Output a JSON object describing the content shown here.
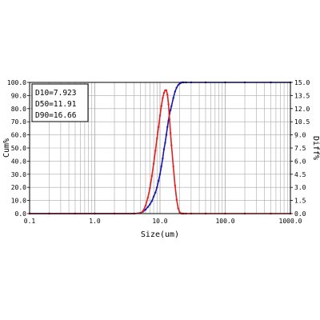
{
  "chart_data": {
    "type": "line",
    "xlabel": "Size(um)",
    "ylabel_left": "Cum%",
    "ylabel_right": "Diff%",
    "x_scale": "log",
    "xlim": [
      0.1,
      1000.0
    ],
    "ylim_left": [
      0.0,
      100.0
    ],
    "ylim_right": [
      0.0,
      15.0
    ],
    "grid": true,
    "x_tick_labels": [
      "0.1",
      "1.0",
      "10.0",
      "100.0",
      "1000.0"
    ],
    "x_tick_values": [
      0.1,
      1.0,
      10.0,
      100.0,
      1000.0
    ],
    "y_left_tick_labels": [
      "0.0",
      "10.0",
      "20.0",
      "30.0",
      "40.0",
      "50.0",
      "60.0",
      "70.0",
      "80.0",
      "90.0",
      "100.0"
    ],
    "y_right_tick_labels": [
      "0.0",
      "1.5",
      "3.0",
      "4.5",
      "6.0",
      "7.5",
      "9.0",
      "10.5",
      "12.0",
      "13.5",
      "15.0"
    ],
    "annotations": [
      "D10=7.923",
      "D50=11.91",
      "D90=16.66"
    ],
    "series": [
      {
        "axis": "left",
        "color": "#1a1aa8",
        "x": [
          0.1,
          0.2,
          0.5,
          1.0,
          2.0,
          4.0,
          5.0,
          5.5,
          6.0,
          6.5,
          7.0,
          7.5,
          8.0,
          8.5,
          9.0,
          9.5,
          10.0,
          10.5,
          11.0,
          11.5,
          12.0,
          12.5,
          13.0,
          13.5,
          14.0,
          14.5,
          15.0,
          16.0,
          17.0,
          18.0,
          19.0,
          20.0,
          21.0,
          22.0,
          23.0,
          25.0,
          30.0,
          50.0,
          100.0,
          200.0,
          500.0,
          1000.0
        ],
        "y": [
          0,
          0,
          0,
          0,
          0,
          0,
          0.5,
          1.5,
          3,
          5,
          7,
          9.5,
          13,
          16,
          20,
          25,
          30,
          36,
          42,
          49,
          54,
          60,
          66,
          71,
          76,
          79,
          82,
          88,
          93,
          96,
          98,
          99,
          99.7,
          100,
          100,
          100,
          100,
          100,
          100,
          100,
          100,
          100
        ]
      },
      {
        "axis": "right",
        "color": "#e02020",
        "x": [
          0.1,
          0.2,
          0.5,
          1.0,
          2.0,
          4.0,
          5.0,
          5.5,
          6.0,
          6.5,
          7.0,
          7.5,
          8.0,
          8.5,
          9.0,
          9.5,
          10.0,
          10.5,
          11.0,
          11.5,
          12.0,
          12.5,
          13.0,
          13.5,
          14.0,
          14.5,
          15.0,
          16.0,
          17.0,
          18.0,
          19.0,
          20.0,
          21.0,
          22.0,
          23.0,
          25.0,
          30.0,
          50.0,
          100.0,
          200.0,
          500.0,
          1000.0
        ],
        "y": [
          0,
          0,
          0,
          0,
          0,
          0,
          0.05,
          0.3,
          0.9,
          1.8,
          2.9,
          4.3,
          5.7,
          7.2,
          8.6,
          9.9,
          11.2,
          12.3,
          13.2,
          13.8,
          14.1,
          14.1,
          13.6,
          12.5,
          10.8,
          9.2,
          7.8,
          5.4,
          3.2,
          1.6,
          0.6,
          0.15,
          0.03,
          0,
          0,
          0,
          0,
          0,
          0,
          0,
          0,
          0
        ]
      }
    ]
  }
}
